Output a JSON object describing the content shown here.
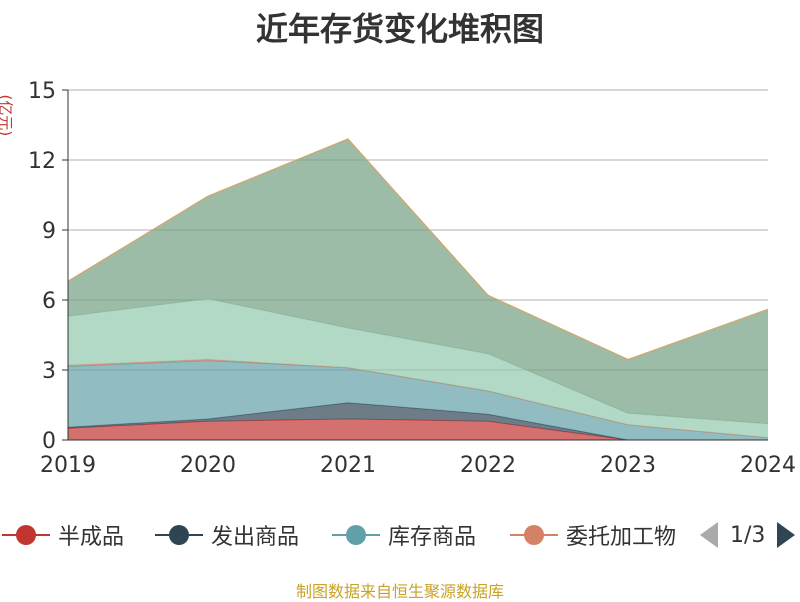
{
  "chart_data": {
    "type": "area",
    "title": "近年存货变化堆积图",
    "ylabel": "(亿元)",
    "x": [
      "2019",
      "2020",
      "2021",
      "2022",
      "2023",
      "2024"
    ],
    "ylim": [
      0,
      15
    ],
    "yticks": [
      0,
      3,
      6,
      9,
      12,
      15
    ],
    "stacked": true,
    "grid": true,
    "legend_position": "bottom",
    "series": [
      {
        "name": "半成品",
        "color": "#c23531",
        "values": [
          0.5,
          0.8,
          0.9,
          0.8,
          0.0,
          0.0
        ]
      },
      {
        "name": "发出商品",
        "color": "#2f4554",
        "values": [
          0.05,
          0.1,
          0.7,
          0.3,
          0.0,
          0.0
        ]
      },
      {
        "name": "库存商品",
        "color": "#61a0a8",
        "values": [
          2.6,
          2.5,
          1.5,
          1.0,
          0.65,
          0.1
        ]
      },
      {
        "name": "委托加工物",
        "color": "#d48265",
        "values": [
          0.05,
          0.05,
          0.0,
          0.0,
          0.0,
          0.0
        ]
      },
      {
        "name": "",
        "color": "#91c7ae",
        "values": [
          2.1,
          2.6,
          1.7,
          1.6,
          0.5,
          0.6
        ]
      },
      {
        "name": "",
        "color": "#749f83",
        "values": [
          1.5,
          4.4,
          8.1,
          2.5,
          2.3,
          4.9
        ]
      }
    ]
  },
  "legend": {
    "items": [
      {
        "label": "半成品",
        "color": "#c23531"
      },
      {
        "label": "发出商品",
        "color": "#2f4554"
      },
      {
        "label": "库存商品",
        "color": "#61a0a8"
      },
      {
        "label": "委托加工物",
        "color": "#d48265"
      }
    ],
    "page_text": "1/3"
  },
  "footer": "制图数据来自恒生聚源数据库"
}
